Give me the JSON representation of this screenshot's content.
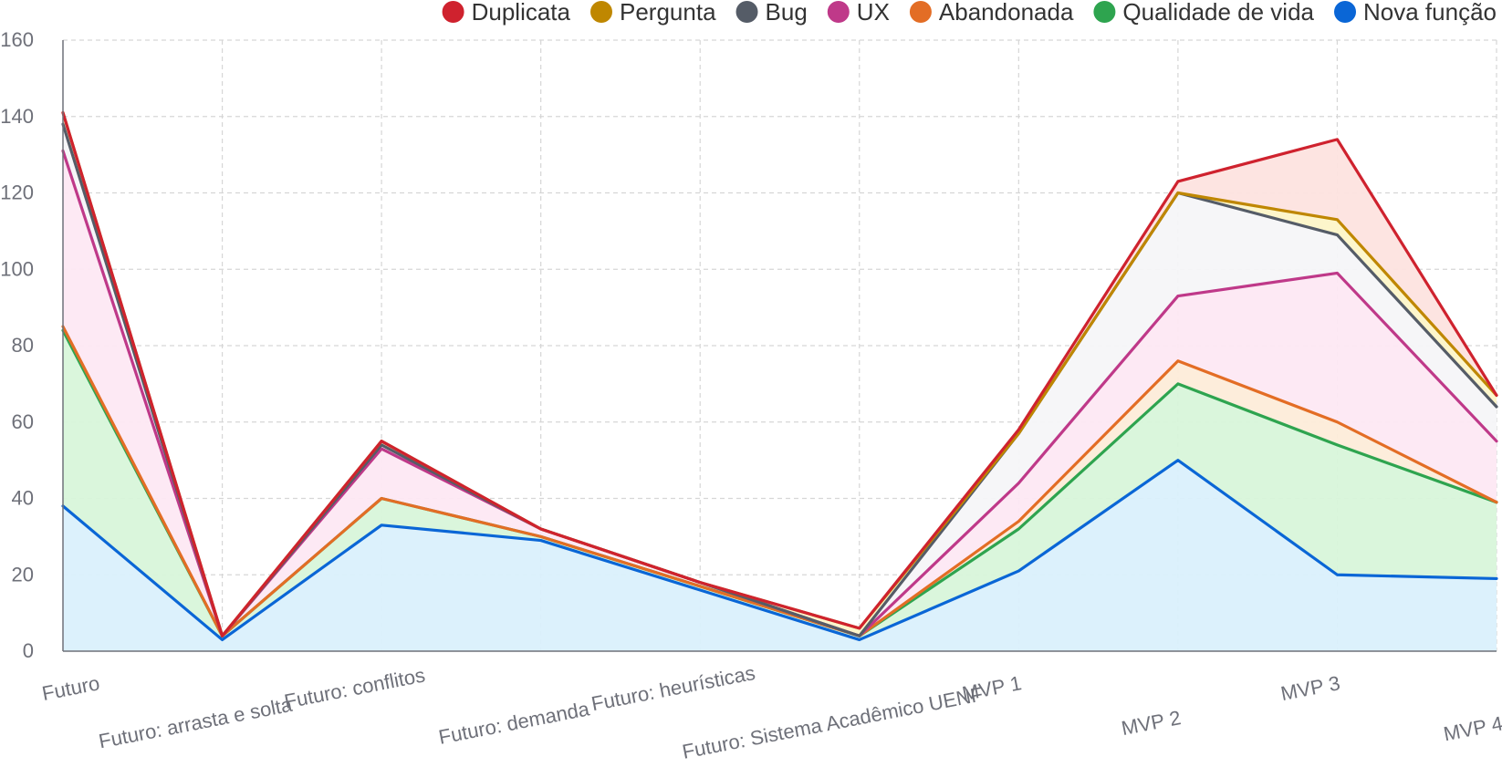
{
  "chart_data": {
    "type": "area",
    "stacked": true,
    "categories": [
      "Futuro",
      "Futuro: arrasta e solta",
      "Futuro: conflitos",
      "Futuro: demanda",
      "Futuro: heurísticas",
      "Futuro: Sistema Acadêmico UENF",
      "MVP 1",
      "MVP 2",
      "MVP 3",
      "MVP 4"
    ],
    "series": [
      {
        "name": "Nova função",
        "line_color": "#0a66d6",
        "fill_color": "#daf0fc",
        "values": [
          38,
          3,
          33,
          29,
          16,
          3,
          21,
          50,
          20,
          19
        ]
      },
      {
        "name": "Qualidade de vida",
        "line_color": "#2ea44f",
        "fill_color": "#d8f6da",
        "values": [
          46,
          1,
          7,
          1,
          1,
          1,
          11,
          20,
          34,
          20
        ]
      },
      {
        "name": "Abandonada",
        "line_color": "#e36d25",
        "fill_color": "#fdecd9",
        "values": [
          1,
          0,
          0,
          0,
          0,
          0,
          2,
          6,
          6,
          0
        ]
      },
      {
        "name": "UX",
        "line_color": "#bf3989",
        "fill_color": "#fde8f3",
        "values": [
          46,
          0,
          13,
          2,
          1,
          0,
          10,
          17,
          39,
          16
        ]
      },
      {
        "name": "Bug",
        "line_color": "#555c67",
        "fill_color": "#f5f6f8",
        "values": [
          7,
          0,
          1,
          0,
          0,
          0,
          13,
          27,
          10,
          9
        ]
      },
      {
        "name": "Pergunta",
        "line_color": "#bf8700",
        "fill_color": "#fdf5c8",
        "values": [
          3,
          0,
          1,
          0,
          0,
          2,
          0,
          0,
          4,
          3
        ]
      },
      {
        "name": "Duplicata",
        "line_color": "#cf222e",
        "fill_color": "#fde3df",
        "values": [
          0,
          0,
          0,
          0,
          0,
          0,
          1,
          3,
          21,
          0
        ]
      }
    ],
    "legend_order": [
      "Duplicata",
      "Pergunta",
      "Bug",
      "UX",
      "Abandonada",
      "Qualidade de vida",
      "Nova função"
    ],
    "legend_position": "top-right",
    "y_ticks": [
      "0",
      "20",
      "40",
      "60",
      "80",
      "100",
      "120",
      "140",
      "160"
    ],
    "ylim": [
      0,
      160
    ],
    "grid": true,
    "title": "",
    "xlabel": "",
    "ylabel": ""
  }
}
